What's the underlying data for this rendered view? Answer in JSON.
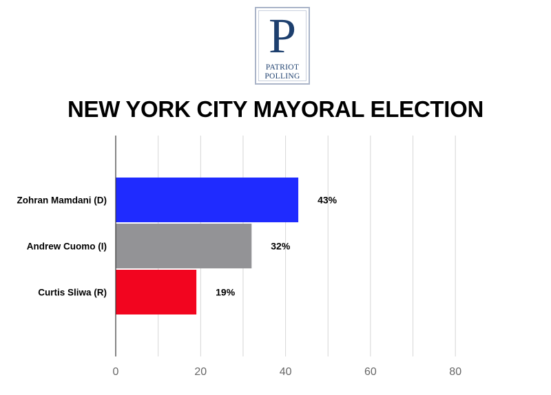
{
  "logo": {
    "letter": "P",
    "line1": "PATRIOT",
    "line2": "POLLING"
  },
  "chart_data": {
    "type": "bar",
    "orientation": "horizontal",
    "title": "NEW YORK CITY MAYORAL ELECTION",
    "categories": [
      "Zohran Mamdani (D)",
      "Andrew Cuomo (I)",
      "Curtis Sliwa (R)"
    ],
    "values": [
      43,
      32,
      19
    ],
    "data_labels": [
      "43%",
      "32%",
      "19%"
    ],
    "colors": [
      "#1f2bff",
      "#939396",
      "#f2051f"
    ],
    "xlim": [
      0,
      90
    ],
    "xticks": [
      0,
      20,
      40,
      60,
      80
    ],
    "xtick_labels": [
      "0",
      "20",
      "40",
      "60",
      "80"
    ],
    "grid": true,
    "legend": "none"
  }
}
